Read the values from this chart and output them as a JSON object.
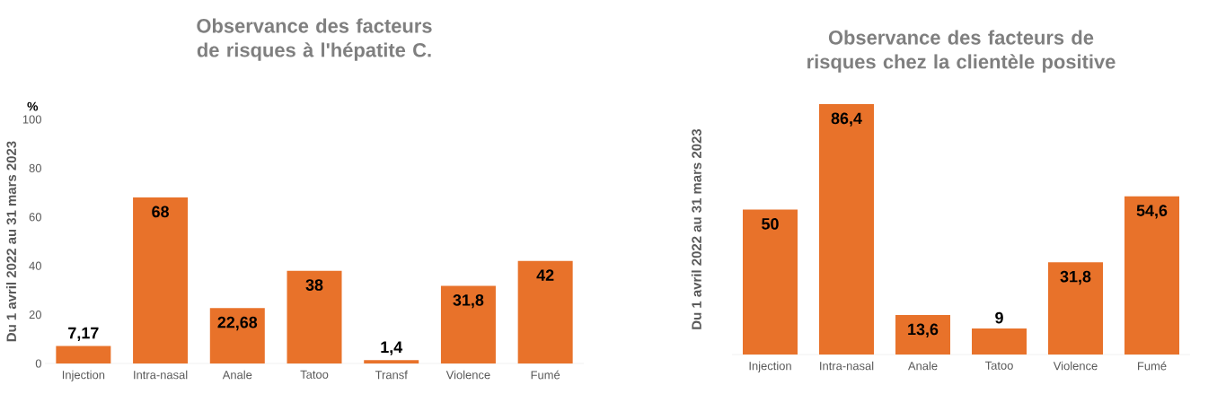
{
  "chart_data": [
    {
      "type": "bar",
      "title": "Observance des facteurs de risques à l'hépatite C.",
      "ylabel": "Du 1 avril 2022 au 31 mars 2023",
      "annotations": [
        "%"
      ],
      "categories": [
        "Injection",
        "Intra-nasal",
        "Anale",
        "Tatoo",
        "Transf",
        "Violence",
        "Fumé"
      ],
      "values": [
        7.17,
        68,
        22.68,
        38,
        1.4,
        31.8,
        42
      ],
      "value_labels": [
        "7,17",
        "68",
        "22,68",
        "38",
        "1,4",
        "31,8",
        "42"
      ],
      "color": "#e8722a",
      "ylim": [
        0,
        100
      ],
      "yticks": [
        0,
        20,
        40,
        60,
        80,
        100
      ]
    },
    {
      "type": "bar",
      "title": "Observance des facteurs de risques chez la clientèle positive",
      "ylabel": "Du 1 avril 2022 au 31 mars 2023",
      "categories": [
        "Injection",
        "Intra-nasal",
        "Anale",
        "Tatoo",
        "Violence",
        "Fumé"
      ],
      "values": [
        50,
        86.4,
        13.6,
        9,
        31.8,
        54.6
      ],
      "value_labels": [
        "50",
        "86,4",
        "13,6",
        "9",
        "31,8",
        "54,6"
      ],
      "color": "#e8722a",
      "tick_labels": "x"
    }
  ]
}
